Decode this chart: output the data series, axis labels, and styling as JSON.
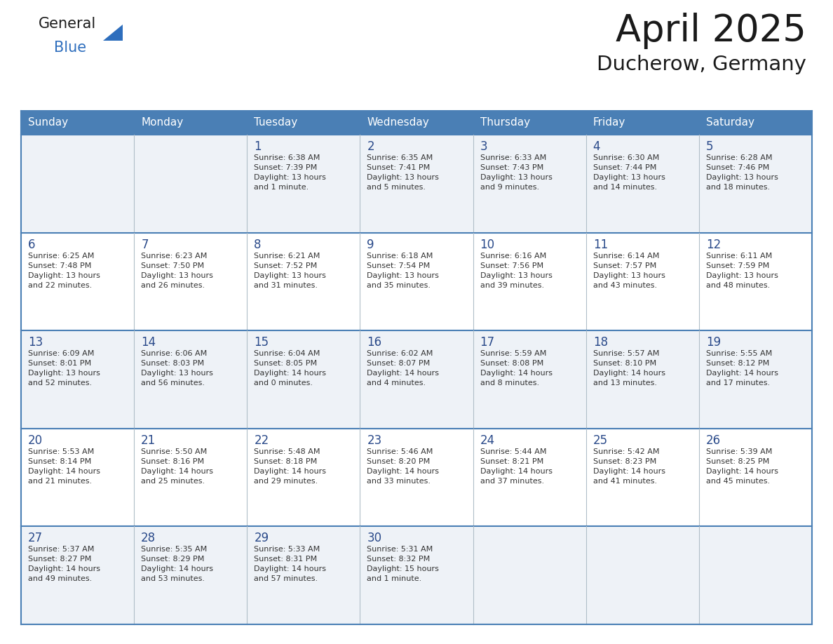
{
  "title": "April 2025",
  "subtitle": "Ducherow, Germany",
  "header_bg_color": "#4a7fb5",
  "header_text_color": "#ffffff",
  "border_color": "#4a7fb5",
  "row_bg_even": "#eef2f7",
  "row_bg_odd": "#ffffff",
  "text_color": "#333333",
  "day_number_color": "#2a4a8a",
  "title_color": "#1a1a1a",
  "logo_text_color": "#1a1a1a",
  "logo_blue_color": "#2e6ebd",
  "day_headers": [
    "Sunday",
    "Monday",
    "Tuesday",
    "Wednesday",
    "Thursday",
    "Friday",
    "Saturday"
  ],
  "weeks": [
    [
      {
        "day": "",
        "text": ""
      },
      {
        "day": "",
        "text": ""
      },
      {
        "day": "1",
        "text": "Sunrise: 6:38 AM\nSunset: 7:39 PM\nDaylight: 13 hours\nand 1 minute."
      },
      {
        "day": "2",
        "text": "Sunrise: 6:35 AM\nSunset: 7:41 PM\nDaylight: 13 hours\nand 5 minutes."
      },
      {
        "day": "3",
        "text": "Sunrise: 6:33 AM\nSunset: 7:43 PM\nDaylight: 13 hours\nand 9 minutes."
      },
      {
        "day": "4",
        "text": "Sunrise: 6:30 AM\nSunset: 7:44 PM\nDaylight: 13 hours\nand 14 minutes."
      },
      {
        "day": "5",
        "text": "Sunrise: 6:28 AM\nSunset: 7:46 PM\nDaylight: 13 hours\nand 18 minutes."
      }
    ],
    [
      {
        "day": "6",
        "text": "Sunrise: 6:25 AM\nSunset: 7:48 PM\nDaylight: 13 hours\nand 22 minutes."
      },
      {
        "day": "7",
        "text": "Sunrise: 6:23 AM\nSunset: 7:50 PM\nDaylight: 13 hours\nand 26 minutes."
      },
      {
        "day": "8",
        "text": "Sunrise: 6:21 AM\nSunset: 7:52 PM\nDaylight: 13 hours\nand 31 minutes."
      },
      {
        "day": "9",
        "text": "Sunrise: 6:18 AM\nSunset: 7:54 PM\nDaylight: 13 hours\nand 35 minutes."
      },
      {
        "day": "10",
        "text": "Sunrise: 6:16 AM\nSunset: 7:56 PM\nDaylight: 13 hours\nand 39 minutes."
      },
      {
        "day": "11",
        "text": "Sunrise: 6:14 AM\nSunset: 7:57 PM\nDaylight: 13 hours\nand 43 minutes."
      },
      {
        "day": "12",
        "text": "Sunrise: 6:11 AM\nSunset: 7:59 PM\nDaylight: 13 hours\nand 48 minutes."
      }
    ],
    [
      {
        "day": "13",
        "text": "Sunrise: 6:09 AM\nSunset: 8:01 PM\nDaylight: 13 hours\nand 52 minutes."
      },
      {
        "day": "14",
        "text": "Sunrise: 6:06 AM\nSunset: 8:03 PM\nDaylight: 13 hours\nand 56 minutes."
      },
      {
        "day": "15",
        "text": "Sunrise: 6:04 AM\nSunset: 8:05 PM\nDaylight: 14 hours\nand 0 minutes."
      },
      {
        "day": "16",
        "text": "Sunrise: 6:02 AM\nSunset: 8:07 PM\nDaylight: 14 hours\nand 4 minutes."
      },
      {
        "day": "17",
        "text": "Sunrise: 5:59 AM\nSunset: 8:08 PM\nDaylight: 14 hours\nand 8 minutes."
      },
      {
        "day": "18",
        "text": "Sunrise: 5:57 AM\nSunset: 8:10 PM\nDaylight: 14 hours\nand 13 minutes."
      },
      {
        "day": "19",
        "text": "Sunrise: 5:55 AM\nSunset: 8:12 PM\nDaylight: 14 hours\nand 17 minutes."
      }
    ],
    [
      {
        "day": "20",
        "text": "Sunrise: 5:53 AM\nSunset: 8:14 PM\nDaylight: 14 hours\nand 21 minutes."
      },
      {
        "day": "21",
        "text": "Sunrise: 5:50 AM\nSunset: 8:16 PM\nDaylight: 14 hours\nand 25 minutes."
      },
      {
        "day": "22",
        "text": "Sunrise: 5:48 AM\nSunset: 8:18 PM\nDaylight: 14 hours\nand 29 minutes."
      },
      {
        "day": "23",
        "text": "Sunrise: 5:46 AM\nSunset: 8:20 PM\nDaylight: 14 hours\nand 33 minutes."
      },
      {
        "day": "24",
        "text": "Sunrise: 5:44 AM\nSunset: 8:21 PM\nDaylight: 14 hours\nand 37 minutes."
      },
      {
        "day": "25",
        "text": "Sunrise: 5:42 AM\nSunset: 8:23 PM\nDaylight: 14 hours\nand 41 minutes."
      },
      {
        "day": "26",
        "text": "Sunrise: 5:39 AM\nSunset: 8:25 PM\nDaylight: 14 hours\nand 45 minutes."
      }
    ],
    [
      {
        "day": "27",
        "text": "Sunrise: 5:37 AM\nSunset: 8:27 PM\nDaylight: 14 hours\nand 49 minutes."
      },
      {
        "day": "28",
        "text": "Sunrise: 5:35 AM\nSunset: 8:29 PM\nDaylight: 14 hours\nand 53 minutes."
      },
      {
        "day": "29",
        "text": "Sunrise: 5:33 AM\nSunset: 8:31 PM\nDaylight: 14 hours\nand 57 minutes."
      },
      {
        "day": "30",
        "text": "Sunrise: 5:31 AM\nSunset: 8:32 PM\nDaylight: 15 hours\nand 1 minute."
      },
      {
        "day": "",
        "text": ""
      },
      {
        "day": "",
        "text": ""
      },
      {
        "day": "",
        "text": ""
      }
    ]
  ]
}
